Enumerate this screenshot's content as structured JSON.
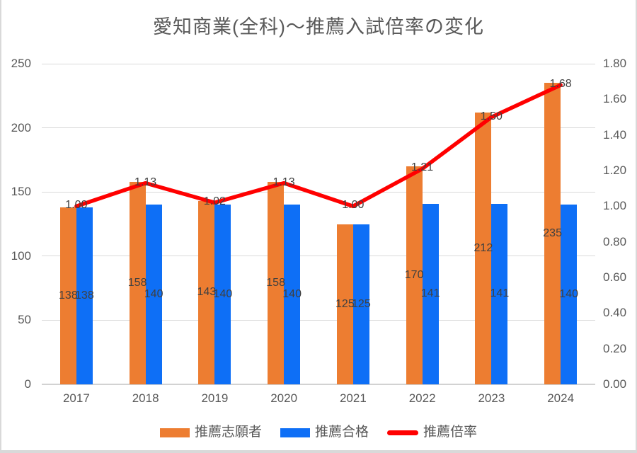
{
  "title": "愛知商業(全科)～推薦入試倍率の変化",
  "colors": {
    "orange": "#ED7D31",
    "blue": "#0E6FF6",
    "red": "#FF0000",
    "grid": "#D9D9D9",
    "axis_line": "#D2D2D2",
    "axis_text": "#595959",
    "title_text": "#595959",
    "data_label": "#404040",
    "border": "#D9D9D9"
  },
  "chart_data": {
    "type": "combo-bar-line",
    "title": "愛知商業(全科)～推薦入試倍率の変化",
    "categories": [
      "2017",
      "2018",
      "2019",
      "2020",
      "2021",
      "2022",
      "2023",
      "2024"
    ],
    "series": [
      {
        "id": "applicants",
        "name": "推薦志願者",
        "type": "bar",
        "axis": "left",
        "color": "#ED7D31",
        "values": [
          138,
          158,
          143,
          158,
          125,
          170,
          212,
          235
        ],
        "labels": [
          "138",
          "158",
          "143",
          "158",
          "125",
          "170",
          "212",
          "235"
        ]
      },
      {
        "id": "accepted",
        "name": "推薦合格",
        "type": "bar",
        "axis": "left",
        "color": "#0E6FF6",
        "values": [
          138,
          140,
          140,
          140,
          125,
          141,
          141,
          140
        ],
        "labels": [
          "138",
          "140",
          "140",
          "140",
          "125",
          "141",
          "141",
          "140"
        ]
      },
      {
        "id": "ratio",
        "name": "推薦倍率",
        "type": "line",
        "axis": "right",
        "color": "#FF0000",
        "values": [
          1.0,
          1.13,
          1.02,
          1.13,
          1.0,
          1.21,
          1.5,
          1.68
        ],
        "labels": [
          "1.00",
          "1.13",
          "1.02",
          "1.13",
          "1.00",
          "1.21",
          "1.50",
          "1.68"
        ]
      }
    ],
    "left_axis": {
      "min": 0,
      "max": 250,
      "step": 50,
      "tick_labels": [
        "0",
        "50",
        "100",
        "150",
        "200",
        "250"
      ]
    },
    "right_axis": {
      "min": 0,
      "max": 1.8,
      "step": 0.2,
      "tick_labels": [
        "0.00",
        "0.20",
        "0.40",
        "0.60",
        "0.80",
        "1.00",
        "1.20",
        "1.40",
        "1.60",
        "1.80"
      ]
    },
    "grid": true,
    "legend_position": "bottom"
  }
}
